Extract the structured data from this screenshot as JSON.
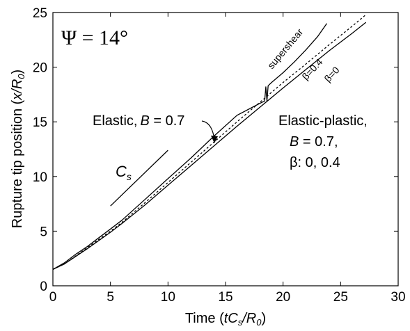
{
  "chart_data": {
    "type": "line",
    "title": "Ψ = 14°",
    "xlabel": "Time (tC_s/R_0)",
    "ylabel": "Rupture tip position (x/R_0)",
    "xlim": [
      0,
      30
    ],
    "ylim": [
      0,
      25
    ],
    "xticks": [
      0,
      5,
      10,
      15,
      20,
      25,
      30
    ],
    "yticks": [
      0,
      5,
      10,
      15,
      20,
      25
    ],
    "grid": false,
    "legend": "none",
    "series": [
      {
        "name": "Elastic, B=0.7",
        "style": "solid",
        "x": [
          0,
          1,
          2,
          3,
          4,
          5,
          6,
          8,
          10,
          12,
          14,
          16,
          18,
          18.4,
          18.5,
          18.6,
          18.7,
          19,
          20,
          21,
          22,
          23,
          23.8
        ],
        "y": [
          1.5,
          2.1,
          2.9,
          3.6,
          4.4,
          5.2,
          6.0,
          7.9,
          9.8,
          11.7,
          13.7,
          15.6,
          16.7,
          16.9,
          18.2,
          16.9,
          18.3,
          18.6,
          19.5,
          20.5,
          21.6,
          22.8,
          24.0
        ]
      },
      {
        "name": "β=0.4",
        "style": "dotted",
        "x": [
          0,
          1,
          2,
          3,
          4,
          5,
          6,
          8,
          10,
          12,
          14,
          16,
          18,
          20,
          22,
          24,
          26,
          27.2
        ],
        "y": [
          1.5,
          2.0,
          2.75,
          3.5,
          4.25,
          5.0,
          5.8,
          7.6,
          9.45,
          11.3,
          13.15,
          15.0,
          16.8,
          18.6,
          20.3,
          22.05,
          23.75,
          24.8
        ]
      },
      {
        "name": "β=0",
        "style": "solid",
        "x": [
          0,
          1,
          2,
          3,
          4,
          5,
          6,
          8,
          10,
          12,
          14,
          16,
          18,
          20,
          22,
          24,
          26,
          27.2
        ],
        "y": [
          1.5,
          2.0,
          2.7,
          3.4,
          4.15,
          4.9,
          5.7,
          7.4,
          9.2,
          11.0,
          12.8,
          14.6,
          16.35,
          18.1,
          19.8,
          21.5,
          23.1,
          24.1
        ]
      },
      {
        "name": "C_s",
        "style": "solid",
        "x": [
          5,
          10
        ],
        "y": [
          7.3,
          12.4
        ]
      }
    ],
    "annotations": {
      "psi": "Ψ = 14°",
      "supershear": "supershear",
      "beta_04": "β=0.4",
      "beta_0": "β=0",
      "elastic": "Elastic, B = 0.7",
      "cs": "C_s",
      "ep_line1": "Elastic-plastic,",
      "ep_line2": "B = 0.7,",
      "ep_line3": "β: 0, 0.4"
    }
  }
}
